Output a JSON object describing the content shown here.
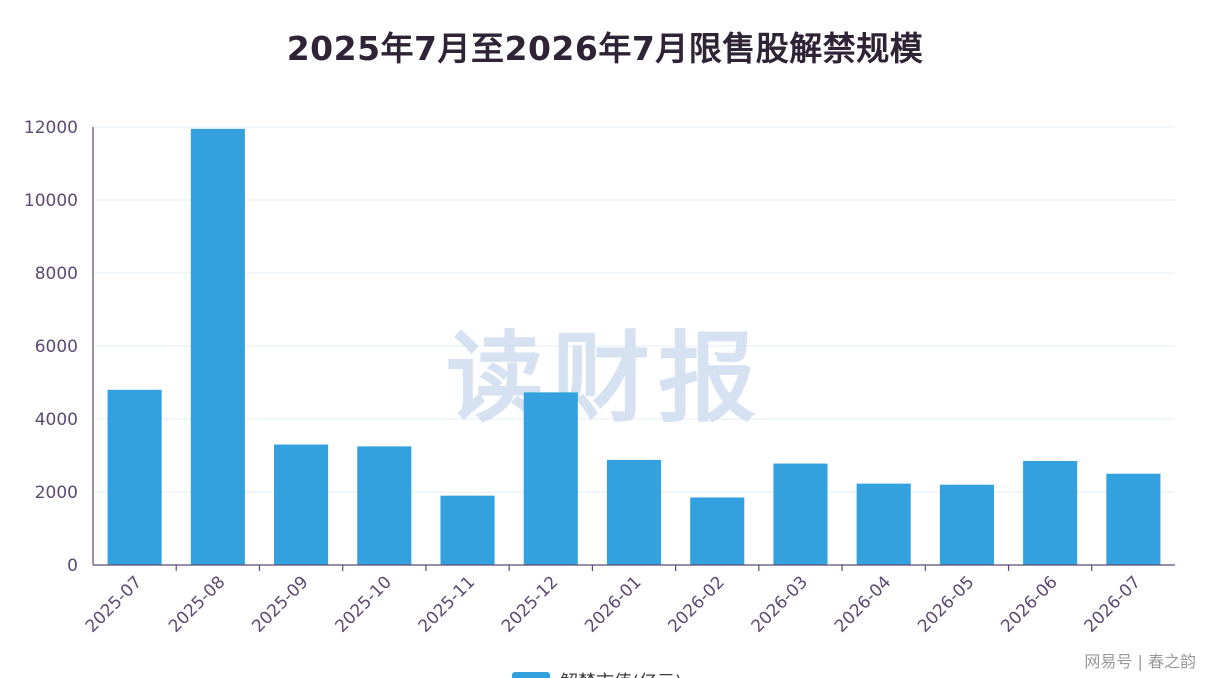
{
  "chart_data": {
    "type": "bar",
    "title": "2025年7月至2026年7月限售股解禁规模",
    "categories": [
      "2025-07",
      "2025-08",
      "2025-09",
      "2025-10",
      "2025-11",
      "2025-12",
      "2026-01",
      "2026-02",
      "2026-03",
      "2026-04",
      "2026-05",
      "2026-06",
      "2026-07"
    ],
    "series": [
      {
        "name": "解禁市值(亿元)",
        "values": [
          4800,
          11950,
          3300,
          3250,
          1900,
          4730,
          2880,
          1850,
          2780,
          2230,
          2200,
          2850,
          2500
        ]
      }
    ],
    "ylim": [
      0,
      12000
    ],
    "yticks": [
      0,
      2000,
      4000,
      6000,
      8000,
      10000,
      12000
    ],
    "grid": true,
    "legend_position": "bottom-center",
    "bar_color": "#34a1df",
    "watermark": "读财报"
  },
  "footer": {
    "text": "网易号 | 春之韵"
  }
}
